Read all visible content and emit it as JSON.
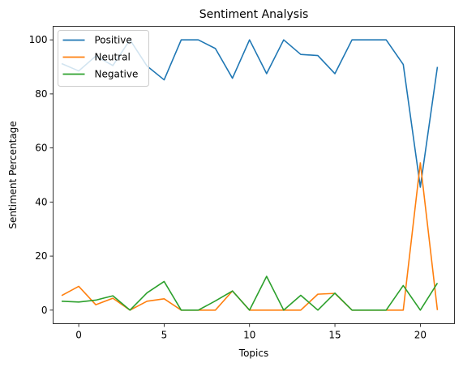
{
  "chart_data": {
    "type": "line",
    "title": "Sentiment Analysis",
    "xlabel": "Topics",
    "ylabel": "Sentiment Percentage",
    "xlim": [
      -1.5,
      22
    ],
    "ylim": [
      -5,
      105
    ],
    "xticks": [
      0,
      5,
      10,
      15,
      20
    ],
    "yticks": [
      0,
      20,
      40,
      60,
      80,
      100
    ],
    "grid": false,
    "legend": "upper-left",
    "x": [
      -1,
      0,
      1,
      2,
      3,
      4,
      5,
      6,
      7,
      8,
      9,
      10,
      11,
      12,
      13,
      14,
      15,
      16,
      17,
      18,
      19,
      20,
      21
    ],
    "series": [
      {
        "name": "Positive",
        "color": "#1f77b4",
        "values": [
          91.2,
          88.5,
          94.0,
          90.5,
          100,
          90.3,
          85.2,
          100,
          100,
          96.8,
          85.8,
          100,
          87.5,
          100,
          94.6,
          94.2,
          87.5,
          100,
          100,
          100,
          90.9,
          45.5,
          90.0
        ]
      },
      {
        "name": "Neutral",
        "color": "#ff7f0e",
        "values": [
          5.4,
          8.8,
          2.0,
          4.4,
          0,
          3.3,
          4.2,
          0,
          0,
          0,
          7.1,
          0,
          0,
          0,
          0,
          5.9,
          6.2,
          0,
          0,
          0,
          0,
          54.5,
          0
        ]
      },
      {
        "name": "Negative",
        "color": "#2ca02c",
        "values": [
          3.3,
          3.0,
          3.7,
          5.3,
          0,
          6.4,
          10.6,
          0,
          0,
          3.4,
          7.1,
          0,
          12.5,
          0,
          5.5,
          0,
          6.3,
          0,
          0,
          0,
          9.1,
          0,
          10.0
        ]
      }
    ]
  }
}
